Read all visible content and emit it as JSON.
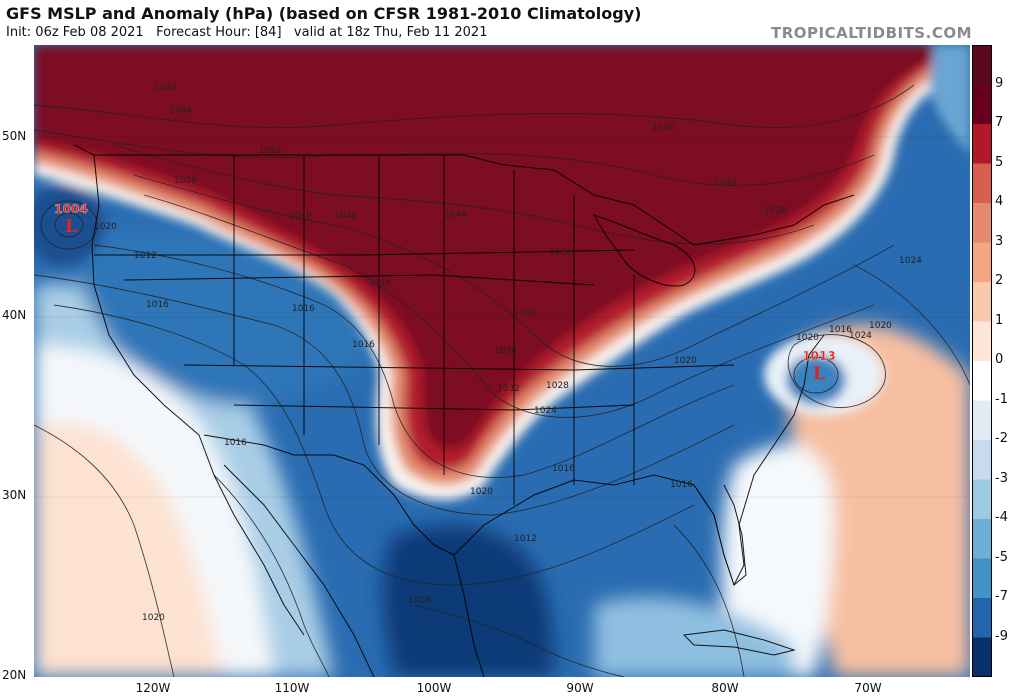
{
  "header": {
    "title": "GFS MSLP and Anomaly (hPa) (based on CFSR 1981-2010 Climatology)",
    "subtitle": "Init: 06z Feb 08 2021   Forecast Hour: [84]   valid at 18z Thu, Feb 11 2021",
    "brand": "TROPICALTIDBITS.COM"
  },
  "axes": {
    "lat_labels": [
      "50N",
      "40N",
      "30N",
      "20N"
    ],
    "lon_labels": [
      "120W",
      "110W",
      "100W",
      "90W",
      "80W",
      "70W"
    ]
  },
  "colorbar": {
    "labels": [
      "9",
      "7",
      "5",
      "4",
      "3",
      "2",
      "1",
      "0",
      "-1",
      "-2",
      "-3",
      "-4",
      "-5",
      "-7",
      "-9"
    ],
    "colors": [
      "#67001f",
      "#b2182b",
      "#d6604d",
      "#e58a70",
      "#f4a582",
      "#f9c9ae",
      "#fde6d8",
      "#ffffff",
      "#e0ecf4",
      "#c6dbef",
      "#9ecae1",
      "#6baed6",
      "#4292c6",
      "#2166ac",
      "#08306b"
    ]
  },
  "pressure_centers": [
    {
      "label": "1004",
      "symbol": "L",
      "color": "#e0241b"
    },
    {
      "label": "1013",
      "symbol": "L",
      "color": "#e0241b"
    }
  ],
  "isobar_labels": [
    "1048",
    "1044",
    "1052",
    "1036",
    "1028",
    "1040",
    "1048",
    "1044",
    "1036",
    "1032",
    "1028",
    "1024",
    "1020",
    "1024",
    "1012",
    "1020",
    "1016",
    "1016",
    "1016",
    "1040",
    "1036",
    "1032",
    "1028",
    "1024",
    "1020",
    "1016",
    "1020",
    "1016",
    "1020",
    "1016",
    "1016",
    "1012",
    "1008",
    "1020",
    "1016"
  ]
}
